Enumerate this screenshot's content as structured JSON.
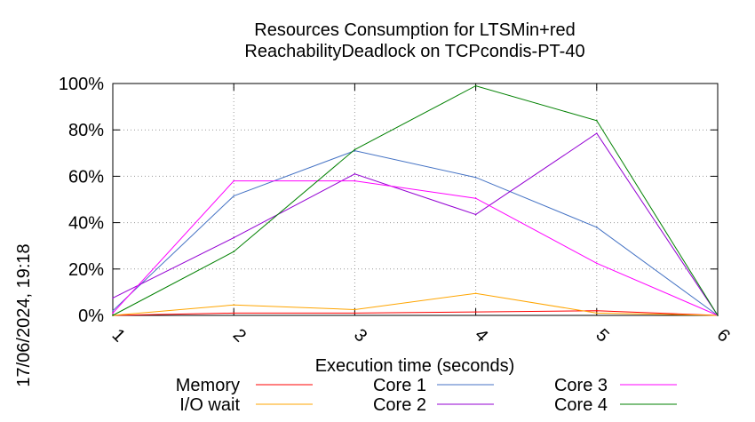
{
  "chart_data": {
    "type": "line",
    "title": "Resources Consumption for LTSMin+red",
    "subtitle": "ReachabilityDeadlock on TCPcondis-PT-40",
    "xlabel": "Execution time (seconds)",
    "ylabel": "",
    "side_label": "17/06/2024, 19:18",
    "x": [
      1,
      2,
      3,
      4,
      5,
      6
    ],
    "xlim": [
      1,
      6
    ],
    "ylim": [
      0,
      100
    ],
    "x_ticks": [
      "1",
      "2",
      "3",
      "4",
      "5",
      "6"
    ],
    "y_ticks": [
      "0%",
      "20%",
      "40%",
      "60%",
      "80%",
      "100%"
    ],
    "grid": true,
    "legend_position": "bottom",
    "series": [
      {
        "name": "Memory",
        "color": "#ff0000",
        "values": [
          0,
          1,
          1,
          1.5,
          2,
          0
        ]
      },
      {
        "name": "I/O wait",
        "color": "#ffa500",
        "values": [
          0,
          4.5,
          2.5,
          9.5,
          1,
          0
        ]
      },
      {
        "name": "Core 1",
        "color": "#4472c4",
        "values": [
          2,
          51.5,
          71,
          59.5,
          38,
          0
        ]
      },
      {
        "name": "Core 2",
        "color": "#9400d3",
        "values": [
          7.5,
          33.5,
          61,
          43.5,
          78.5,
          0
        ]
      },
      {
        "name": "Core 3",
        "color": "#ff00ff",
        "values": [
          1,
          58,
          58,
          50.5,
          22.5,
          0
        ]
      },
      {
        "name": "Core 4",
        "color": "#008000",
        "values": [
          0,
          27.5,
          71.5,
          99,
          84,
          0
        ]
      }
    ]
  }
}
